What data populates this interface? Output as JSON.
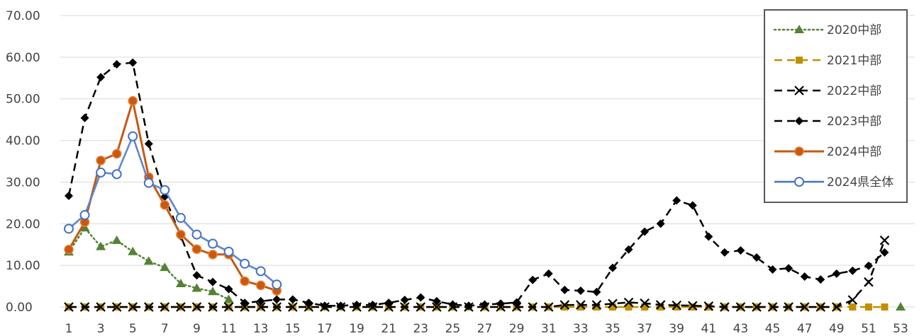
{
  "chart_data": {
    "type": "line",
    "x": [
      1,
      2,
      3,
      4,
      5,
      6,
      7,
      8,
      9,
      10,
      11,
      12,
      13,
      14,
      15,
      16,
      17,
      18,
      19,
      20,
      21,
      22,
      23,
      24,
      25,
      26,
      27,
      28,
      29,
      30,
      31,
      32,
      33,
      34,
      35,
      36,
      37,
      38,
      39,
      40,
      41,
      42,
      43,
      44,
      45,
      46,
      47,
      48,
      49,
      50,
      51,
      52,
      53
    ],
    "x_tick_labels": [
      "1",
      "3",
      "5",
      "7",
      "9",
      "11",
      "13",
      "15",
      "17",
      "19",
      "21",
      "23",
      "25",
      "27",
      "29",
      "31",
      "33",
      "35",
      "37",
      "39",
      "41",
      "43",
      "45",
      "47",
      "49",
      "51",
      "53"
    ],
    "ylim": [
      0,
      70
    ],
    "y_tick_labels": [
      "0.00",
      "10.00",
      "20.00",
      "30.00",
      "40.00",
      "50.00",
      "60.00",
      "70.00"
    ],
    "grid": true,
    "legend_position": "top-right",
    "series": [
      {
        "name": "2020中部",
        "color": "#548235",
        "style": "dotted",
        "marker": "triangle",
        "values": [
          13.2,
          19.0,
          14.5,
          16.0,
          13.3,
          11.0,
          9.5,
          5.6,
          4.5,
          3.7,
          1.8,
          null,
          null,
          null,
          null,
          null,
          null,
          null,
          null,
          null,
          null,
          null,
          null,
          null,
          null,
          null,
          null,
          null,
          null,
          null,
          null,
          null,
          null,
          null,
          null,
          null,
          null,
          null,
          null,
          null,
          null,
          null,
          null,
          null,
          null,
          null,
          null,
          null,
          null,
          null,
          null,
          null,
          0.0
        ]
      },
      {
        "name": "2021中部",
        "color": "#bf9000",
        "style": "dashed",
        "marker": "square",
        "values": [
          0,
          0,
          0,
          0,
          0,
          0,
          0,
          0,
          0,
          0,
          0,
          0,
          0,
          0,
          0,
          0,
          0,
          0,
          0,
          0,
          0,
          0,
          0,
          0,
          0,
          0,
          0,
          0,
          0,
          0,
          0,
          0,
          0,
          0,
          0,
          0,
          0,
          0,
          0,
          0,
          0,
          0,
          0,
          0,
          0,
          0,
          0,
          0,
          0,
          0,
          0,
          0,
          null
        ]
      },
      {
        "name": "2022中部",
        "color": "#000000",
        "style": "dashed",
        "marker": "x",
        "values": [
          0,
          0,
          0,
          0,
          0,
          0,
          0,
          0,
          0,
          0,
          0,
          0,
          0,
          0,
          0,
          0,
          0,
          0,
          0,
          0,
          0,
          0,
          0,
          0,
          0,
          0,
          0,
          0,
          0,
          0,
          0,
          0.5,
          0.5,
          0.5,
          0.8,
          1.1,
          0.9,
          0.5,
          0.4,
          0.3,
          0.2,
          0,
          0,
          0,
          0,
          0,
          0,
          0,
          0,
          1.7,
          6.0,
          16.0,
          null
        ]
      },
      {
        "name": "2023中部",
        "color": "#000000",
        "style": "dashed",
        "marker": "diamond",
        "values": [
          26.7,
          45.4,
          55.2,
          58.3,
          58.7,
          39.2,
          26.5,
          17.0,
          7.6,
          6.0,
          4.3,
          1.0,
          1.4,
          1.8,
          1.8,
          1.0,
          0.3,
          0.3,
          0.5,
          0.5,
          1.0,
          1.7,
          2.3,
          1.4,
          0.6,
          0.3,
          0.6,
          0.8,
          1.1,
          6.5,
          8.0,
          4.1,
          3.9,
          3.6,
          9.4,
          13.8,
          18.1,
          20.0,
          25.6,
          24.4,
          16.9,
          13.1,
          13.6,
          11.9,
          9.0,
          9.3,
          7.3,
          6.6,
          8.0,
          8.7,
          9.9,
          13.1,
          null
        ]
      },
      {
        "name": "2024中部",
        "color": "#c55a11",
        "style": "solid",
        "marker": "circle-filled",
        "values": [
          13.8,
          20.4,
          35.2,
          36.8,
          49.5,
          31.2,
          24.5,
          17.4,
          13.9,
          12.6,
          12.6,
          6.2,
          5.2,
          3.9,
          null,
          null,
          null,
          null,
          null,
          null,
          null,
          null,
          null,
          null,
          null,
          null,
          null,
          null,
          null,
          null,
          null,
          null,
          null,
          null,
          null,
          null,
          null,
          null,
          null,
          null,
          null,
          null,
          null,
          null,
          null,
          null,
          null,
          null,
          null,
          null,
          null,
          null,
          null
        ]
      },
      {
        "name": "2024県全体",
        "color": "#4472c4",
        "style": "dotted-solid",
        "marker": "circle-open",
        "values": [
          18.8,
          22.1,
          32.3,
          31.9,
          41.0,
          29.8,
          28.1,
          21.4,
          17.4,
          15.2,
          13.3,
          10.4,
          8.6,
          5.4,
          null,
          null,
          null,
          null,
          null,
          null,
          null,
          null,
          null,
          null,
          null,
          null,
          null,
          null,
          null,
          null,
          null,
          null,
          null,
          null,
          null,
          null,
          null,
          null,
          null,
          null,
          null,
          null,
          null,
          null,
          null,
          null,
          null,
          null,
          null,
          null,
          null,
          null,
          null
        ]
      }
    ]
  }
}
